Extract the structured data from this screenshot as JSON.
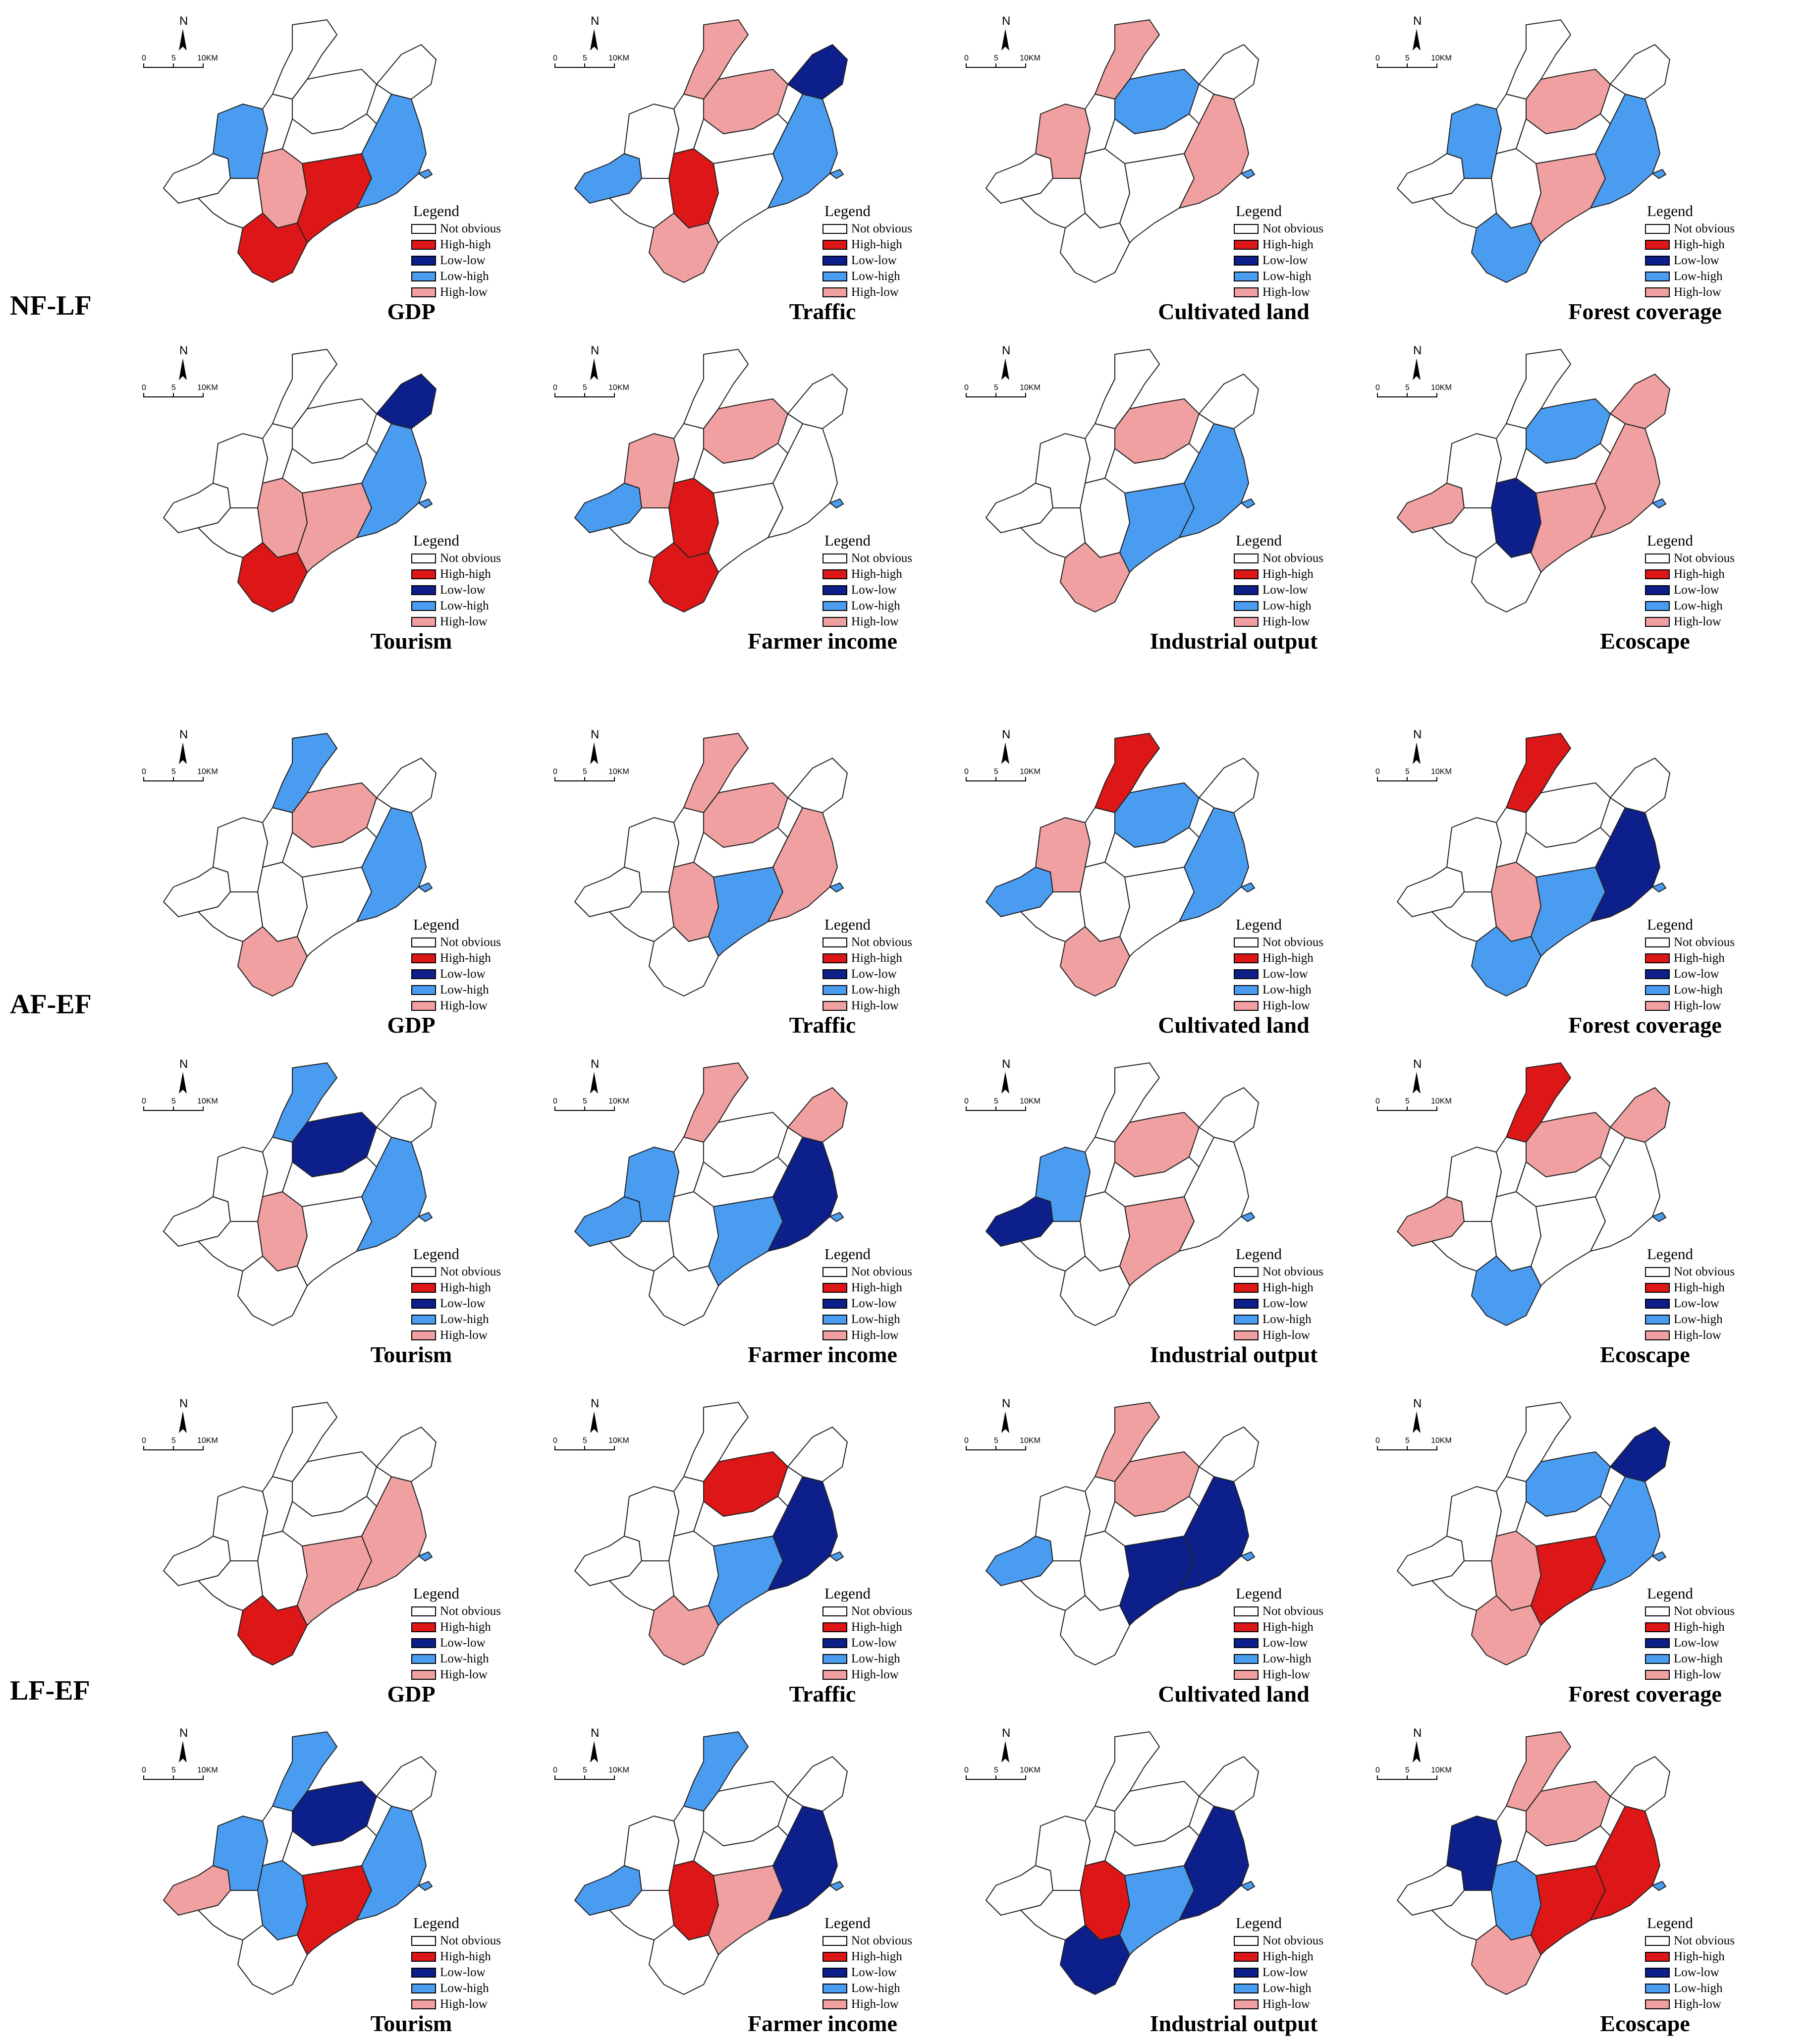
{
  "colors": {
    "not_obvious": "#ffffff",
    "high_high": "#dd1717",
    "low_low": "#0d1f8a",
    "low_high": "#4a9cf0",
    "high_low": "#f0a0a0"
  },
  "compass": {
    "north": "N",
    "scale_start": "0",
    "scale_mid": "5",
    "scale_end": "10KM"
  },
  "legend_title": "Legend",
  "legend_items": [
    {
      "key": "not_obvious",
      "label": "Not obvious"
    },
    {
      "key": "high_high",
      "label": "High-high"
    },
    {
      "key": "low_low",
      "label": "Low-low"
    },
    {
      "key": "low_high",
      "label": "Low-high"
    },
    {
      "key": "high_low",
      "label": "High-low"
    }
  ],
  "groups": [
    {
      "label": "NF-LF",
      "panels": [
        {
          "title": "GDP",
          "regions": [
            "not_obvious",
            "low_high",
            "not_obvious",
            "not_obvious",
            "high_low",
            "high_high",
            "high_high",
            "low_high",
            "not_obvious",
            "not_obvious",
            "not_obvious",
            "not_obvious"
          ]
        },
        {
          "title": "Traffic",
          "regions": [
            "low_high",
            "not_obvious",
            "high_low",
            "high_low",
            "high_high",
            "high_low",
            "not_obvious",
            "low_high",
            "low_low",
            "not_obvious",
            "not_obvious",
            "not_obvious"
          ]
        },
        {
          "title": "Cultivated land",
          "regions": [
            "not_obvious",
            "high_low",
            "high_low",
            "low_high",
            "not_obvious",
            "not_obvious",
            "not_obvious",
            "high_low",
            "not_obvious",
            "not_obvious",
            "not_obvious",
            "not_obvious"
          ]
        },
        {
          "title": "Forest coverage",
          "regions": [
            "not_obvious",
            "low_high",
            "not_obvious",
            "high_low",
            "not_obvious",
            "low_high",
            "high_low",
            "low_high",
            "not_obvious",
            "not_obvious",
            "not_obvious",
            "not_obvious"
          ]
        },
        {
          "title": "Tourism",
          "regions": [
            "not_obvious",
            "not_obvious",
            "not_obvious",
            "not_obvious",
            "high_low",
            "high_high",
            "high_low",
            "low_high",
            "low_low",
            "not_obvious",
            "not_obvious",
            "not_obvious"
          ]
        },
        {
          "title": "Farmer income",
          "regions": [
            "low_high",
            "high_low",
            "not_obvious",
            "high_low",
            "high_high",
            "high_high",
            "not_obvious",
            "not_obvious",
            "not_obvious",
            "not_obvious",
            "not_obvious",
            "not_obvious"
          ]
        },
        {
          "title": "Industrial output",
          "regions": [
            "not_obvious",
            "not_obvious",
            "not_obvious",
            "high_low",
            "not_obvious",
            "high_low",
            "low_high",
            "low_high",
            "not_obvious",
            "not_obvious",
            "not_obvious",
            "not_obvious"
          ]
        },
        {
          "title": "Ecoscape",
          "regions": [
            "high_low",
            "not_obvious",
            "not_obvious",
            "low_high",
            "low_low",
            "not_obvious",
            "high_low",
            "high_low",
            "high_low",
            "not_obvious",
            "not_obvious",
            "not_obvious"
          ]
        }
      ]
    },
    {
      "label": "AF-EF",
      "panels": [
        {
          "title": "GDP",
          "regions": [
            "not_obvious",
            "not_obvious",
            "low_high",
            "high_low",
            "not_obvious",
            "high_low",
            "not_obvious",
            "low_high",
            "not_obvious",
            "not_obvious",
            "not_obvious",
            "not_obvious"
          ]
        },
        {
          "title": "Traffic",
          "regions": [
            "not_obvious",
            "not_obvious",
            "high_low",
            "high_low",
            "high_low",
            "not_obvious",
            "low_high",
            "high_low",
            "not_obvious",
            "not_obvious",
            "not_obvious",
            "not_obvious"
          ]
        },
        {
          "title": "Cultivated land",
          "regions": [
            "low_high",
            "high_low",
            "high_high",
            "low_high",
            "not_obvious",
            "high_low",
            "not_obvious",
            "low_high",
            "not_obvious",
            "not_obvious",
            "not_obvious",
            "not_obvious"
          ]
        },
        {
          "title": "Forest coverage",
          "regions": [
            "not_obvious",
            "not_obvious",
            "high_high",
            "not_obvious",
            "high_low",
            "low_high",
            "low_high",
            "low_low",
            "not_obvious",
            "not_obvious",
            "not_obvious",
            "not_obvious"
          ]
        },
        {
          "title": "Tourism",
          "regions": [
            "not_obvious",
            "not_obvious",
            "low_high",
            "low_low",
            "high_low",
            "not_obvious",
            "not_obvious",
            "low_high",
            "not_obvious",
            "not_obvious",
            "not_obvious",
            "not_obvious"
          ]
        },
        {
          "title": "Farmer income",
          "regions": [
            "low_high",
            "low_high",
            "high_low",
            "not_obvious",
            "not_obvious",
            "not_obvious",
            "low_high",
            "low_low",
            "high_low",
            "not_obvious",
            "not_obvious",
            "not_obvious"
          ]
        },
        {
          "title": "Industrial output",
          "regions": [
            "low_low",
            "low_high",
            "not_obvious",
            "high_low",
            "not_obvious",
            "not_obvious",
            "high_low",
            "not_obvious",
            "not_obvious",
            "not_obvious",
            "not_obvious",
            "not_obvious"
          ]
        },
        {
          "title": "Ecoscape",
          "regions": [
            "high_low",
            "not_obvious",
            "high_high",
            "high_low",
            "not_obvious",
            "low_high",
            "not_obvious",
            "not_obvious",
            "high_low",
            "not_obvious",
            "not_obvious",
            "not_obvious"
          ]
        }
      ]
    },
    {
      "label": "LF-EF",
      "panels": [
        {
          "title": "GDP",
          "regions": [
            "not_obvious",
            "not_obvious",
            "not_obvious",
            "not_obvious",
            "not_obvious",
            "high_high",
            "high_low",
            "high_low",
            "not_obvious",
            "not_obvious",
            "not_obvious",
            "not_obvious"
          ]
        },
        {
          "title": "Traffic",
          "regions": [
            "not_obvious",
            "not_obvious",
            "not_obvious",
            "high_high",
            "not_obvious",
            "high_low",
            "low_high",
            "low_low",
            "not_obvious",
            "not_obvious",
            "not_obvious",
            "not_obvious"
          ]
        },
        {
          "title": "Cultivated land",
          "regions": [
            "low_high",
            "not_obvious",
            "high_low",
            "high_low",
            "not_obvious",
            "not_obvious",
            "low_low",
            "low_low",
            "not_obvious",
            "not_obvious",
            "not_obvious",
            "not_obvious"
          ]
        },
        {
          "title": "Forest coverage",
          "regions": [
            "not_obvious",
            "not_obvious",
            "not_obvious",
            "low_high",
            "high_low",
            "high_low",
            "high_high",
            "low_high",
            "low_low",
            "not_obvious",
            "not_obvious",
            "not_obvious"
          ]
        },
        {
          "title": "Tourism",
          "regions": [
            "high_low",
            "low_high",
            "low_high",
            "low_low",
            "low_high",
            "not_obvious",
            "high_high",
            "low_high",
            "not_obvious",
            "not_obvious",
            "not_obvious",
            "not_obvious"
          ]
        },
        {
          "title": "Farmer income",
          "regions": [
            "low_high",
            "not_obvious",
            "low_high",
            "not_obvious",
            "high_high",
            "not_obvious",
            "high_low",
            "low_low",
            "not_obvious",
            "not_obvious",
            "not_obvious",
            "not_obvious"
          ]
        },
        {
          "title": "Industrial output",
          "regions": [
            "not_obvious",
            "not_obvious",
            "not_obvious",
            "not_obvious",
            "high_high",
            "low_low",
            "low_high",
            "low_low",
            "not_obvious",
            "not_obvious",
            "not_obvious",
            "not_obvious"
          ]
        },
        {
          "title": "Ecoscape",
          "regions": [
            "not_obvious",
            "low_low",
            "high_low",
            "high_low",
            "low_high",
            "high_low",
            "high_high",
            "high_high",
            "not_obvious",
            "not_obvious",
            "not_obvious",
            "not_obvious"
          ]
        }
      ]
    }
  ]
}
